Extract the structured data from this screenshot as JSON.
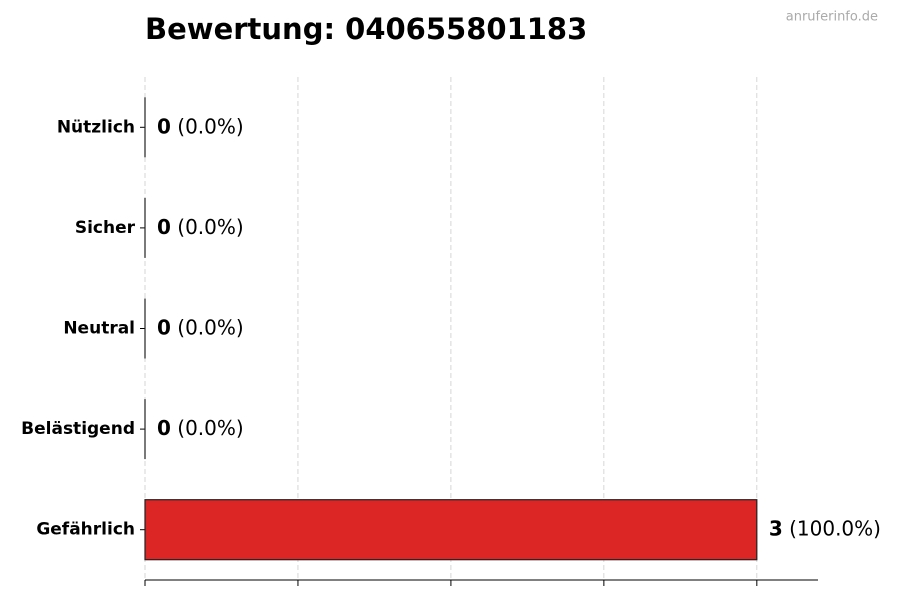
{
  "chart_data": {
    "type": "barh",
    "title": "Bewertung: 040655801183",
    "watermark": "anruferinfo.de",
    "categories": [
      "Nützlich",
      "Sicher",
      "Neutral",
      "Belästigend",
      "Gefährlich"
    ],
    "values": [
      0,
      0,
      0,
      0,
      3
    ],
    "percent_labels": [
      "(0.0%)",
      "(0.0%)",
      "(0.0%)",
      "(0.0%)",
      "(100.0%)"
    ],
    "color": "#dc2626",
    "xlim": [
      0,
      3.3
    ],
    "xticks": [
      0,
      0.75,
      1.5,
      2.25,
      3
    ],
    "grid": true
  }
}
